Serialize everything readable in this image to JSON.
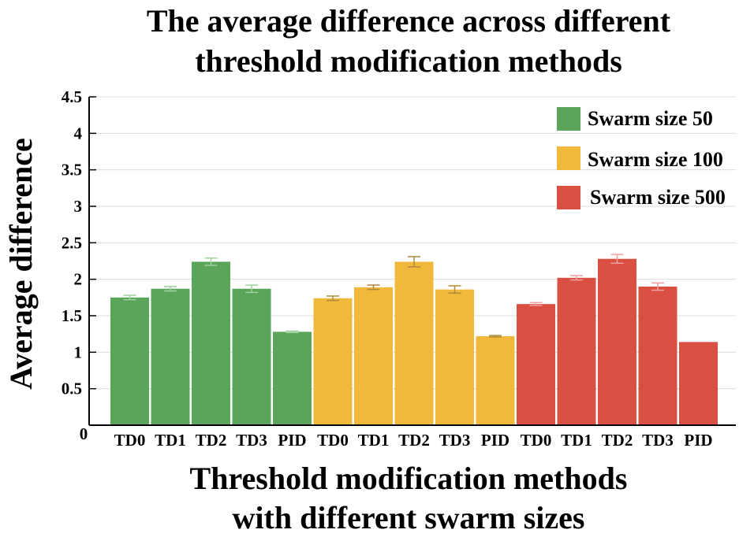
{
  "chart_data": {
    "type": "bar",
    "title": "The average difference across different threshold modification methods",
    "title_lines": [
      "The average difference across different",
      "threshold modification methods"
    ],
    "xlabel": "Threshold modification methods with different swarm sizes",
    "xlabel_lines": [
      "Threshold modification methods",
      "with different swarm sizes"
    ],
    "ylabel": "Average difference",
    "ylim": [
      0,
      4.5
    ],
    "yticks": [
      0,
      0.5,
      1,
      1.5,
      2,
      2.5,
      3,
      3.5,
      4,
      4.5
    ],
    "ytick_labels": [
      "0",
      "0.5",
      "1",
      "1.5",
      "2",
      "2.5",
      "3",
      "3.5",
      "4",
      "4.5"
    ],
    "grid": true,
    "legend_position": "top-right",
    "categories": [
      "TD0",
      "TD1",
      "TD2",
      "TD3",
      "PID"
    ],
    "series": [
      {
        "name": "Swarm size 50",
        "color": "#5aa55a",
        "error_color": "#9fd09f",
        "values": [
          1.75,
          1.87,
          2.24,
          1.87,
          1.28
        ],
        "errors": [
          0.03,
          0.03,
          0.05,
          0.05,
          0.01
        ]
      },
      {
        "name": "Swarm size 100",
        "color": "#f0b93c",
        "error_color": "#b08a3a",
        "values": [
          1.74,
          1.89,
          2.24,
          1.86,
          1.22
        ],
        "errors": [
          0.03,
          0.03,
          0.07,
          0.05,
          0.01
        ]
      },
      {
        "name": "Swarm size 500",
        "color": "#d94f41",
        "error_color": "#f0a0a0",
        "values": [
          1.66,
          2.02,
          2.28,
          1.9,
          1.14
        ],
        "errors": [
          0.02,
          0.03,
          0.06,
          0.05,
          0.0
        ]
      }
    ]
  }
}
